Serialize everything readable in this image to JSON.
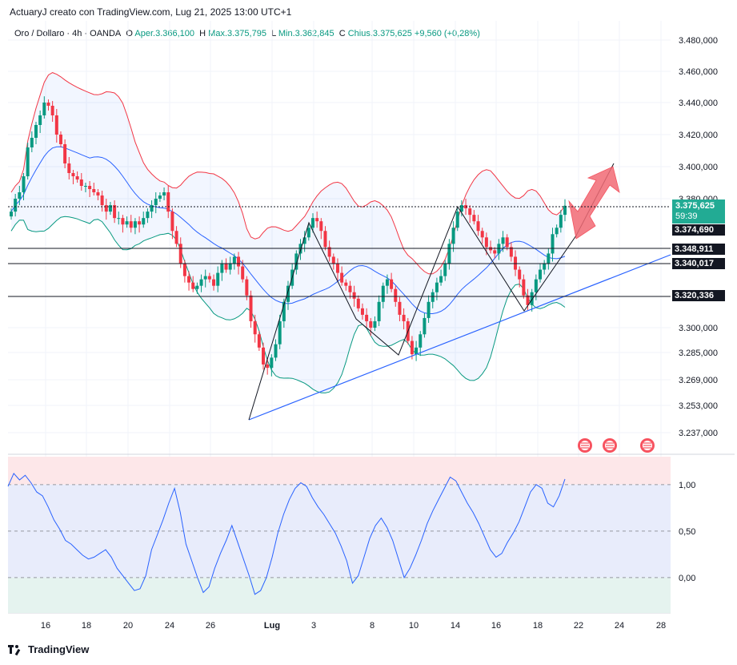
{
  "header": {
    "text": "ActuaryJ creato con TradingView.com, Lug 21, 2025 13:00 UTC+1"
  },
  "legend": {
    "symbol": "Oro / Dollaro · 4h · OANDA",
    "open_label": "O",
    "open_value": "Aper.3.366,100",
    "high_label": "H",
    "high_value": "Max.3.375,795",
    "low_label": "L",
    "low_value": "Min.3.362,845",
    "close_label": "C",
    "close_value": "Chius.3.375,625",
    "change": "+9,560 (+0,28%)"
  },
  "price_tags": {
    "last": "3.375,625",
    "countdown": "59:39",
    "t1": "3.374,690",
    "t2": "3.348,911",
    "t3": "3.340,017",
    "t4": "3.320,336"
  },
  "footer": {
    "brand": "TradingView"
  },
  "colors": {
    "up": "#089981",
    "down": "#f23645",
    "band_upper": "#f23645",
    "band_lower": "#089981",
    "basis": "#2962ff",
    "trendline": "#2962ff",
    "arrow": "#f26b75",
    "osc": "#2962ff"
  },
  "chart_data": [
    {
      "type": "candlestick",
      "title": "Oro / Dollaro · 4h · OANDA",
      "x_ticks": [
        "16",
        "18",
        "20",
        "24",
        "26",
        "Lug",
        "3",
        "8",
        "10",
        "14",
        "16",
        "18",
        "22",
        "24",
        "28"
      ],
      "y_ticks": [
        "3.480,000",
        "3.460,000",
        "3.440,000",
        "3.420,000",
        "3.400,000",
        "3.380,000",
        "3.300,000",
        "3.285,000",
        "3.269,000",
        "3.253,000",
        "3.237,000"
      ],
      "y_tick_values": [
        3480,
        3460,
        3440,
        3420,
        3400,
        3380,
        3300,
        3285,
        3269,
        3253,
        3237
      ],
      "ylim": [
        3228,
        3488
      ],
      "closes": [
        3372,
        3380,
        3384,
        3394,
        3412,
        3418,
        3426,
        3432,
        3440,
        3438,
        3432,
        3420,
        3414,
        3402,
        3396,
        3394,
        3392,
        3388,
        3388,
        3386,
        3384,
        3382,
        3376,
        3372,
        3376,
        3368,
        3368,
        3364,
        3366,
        3362,
        3366,
        3364,
        3368,
        3372,
        3376,
        3380,
        3382,
        3384,
        3372,
        3360,
        3352,
        3340,
        3332,
        3328,
        3324,
        3326,
        3330,
        3332,
        3330,
        3326,
        3334,
        3340,
        3336,
        3340,
        3344,
        3338,
        3330,
        3320,
        3304,
        3296,
        3288,
        3278,
        3276,
        3282,
        3290,
        3304,
        3316,
        3326,
        3336,
        3346,
        3352,
        3356,
        3362,
        3368,
        3366,
        3360,
        3350,
        3344,
        3340,
        3334,
        3328,
        3326,
        3322,
        3318,
        3312,
        3308,
        3304,
        3300,
        3304,
        3316,
        3326,
        3330,
        3324,
        3316,
        3308,
        3304,
        3292,
        3284,
        3288,
        3296,
        3306,
        3316,
        3322,
        3328,
        3332,
        3340,
        3352,
        3362,
        3372,
        3376,
        3374,
        3370,
        3366,
        3360,
        3356,
        3350,
        3348,
        3346,
        3352,
        3356,
        3350,
        3344,
        3336,
        3330,
        3320,
        3314,
        3322,
        3330,
        3336,
        3340,
        3346,
        3358,
        3362,
        3370,
        3375.6
      ],
      "levels": [
        3374.69,
        3348.911,
        3340.017,
        3320.336
      ],
      "current_price": 3375.625,
      "annotations": [
        "trendline",
        "zigzag",
        "projected-arrow"
      ]
    },
    {
      "type": "line",
      "title": "",
      "y_ticks": [
        "1,00",
        "0,50",
        "0,00"
      ],
      "y_tick_values": [
        1.0,
        0.5,
        0.0
      ],
      "ylim": [
        -0.38,
        1.3
      ],
      "values": [
        0.98,
        1.12,
        1.05,
        1.1,
        1.02,
        0.92,
        0.88,
        0.76,
        0.62,
        0.52,
        0.4,
        0.36,
        0.3,
        0.24,
        0.2,
        0.22,
        0.26,
        0.3,
        0.22,
        0.1,
        0.02,
        -0.06,
        -0.14,
        -0.12,
        0.02,
        0.3,
        0.46,
        0.62,
        0.8,
        0.96,
        0.7,
        0.36,
        0.18,
        0.0,
        -0.16,
        -0.1,
        0.1,
        0.26,
        0.4,
        0.56,
        0.38,
        0.2,
        0.02,
        -0.18,
        -0.14,
        0.0,
        0.22,
        0.48,
        0.68,
        0.84,
        0.96,
        1.02,
        0.98,
        0.86,
        0.76,
        0.68,
        0.58,
        0.48,
        0.34,
        0.18,
        -0.06,
        0.02,
        0.22,
        0.42,
        0.56,
        0.64,
        0.54,
        0.4,
        0.2,
        0.0,
        0.1,
        0.24,
        0.4,
        0.58,
        0.72,
        0.84,
        0.96,
        1.08,
        1.04,
        0.92,
        0.8,
        0.7,
        0.58,
        0.44,
        0.3,
        0.22,
        0.26,
        0.38,
        0.48,
        0.6,
        0.76,
        0.92,
        1.0,
        0.96,
        0.8,
        0.76,
        0.88,
        1.06
      ]
    }
  ]
}
